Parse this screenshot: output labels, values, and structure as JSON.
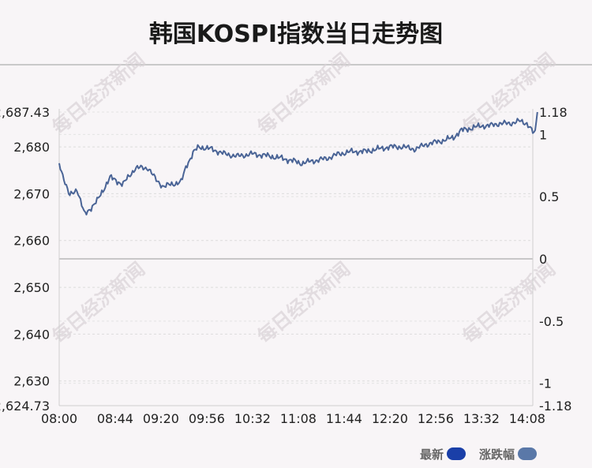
{
  "title": "韩国KOSPI指数当日走势图",
  "watermark": "每日经济新闻",
  "legend": {
    "latest_label": "最新",
    "latest_color": "#1a3fa8",
    "change_label": "涨跌幅",
    "change_color": "#5a78a8"
  },
  "chart_data": {
    "type": "line",
    "title": "韩国KOSPI指数当日走势图",
    "line_color": "#4a6496",
    "grid": true,
    "legend_placement": "bottom-right",
    "x_ticks": [
      "08:00",
      "08:44",
      "09:20",
      "09:56",
      "10:32",
      "11:08",
      "11:44",
      "12:20",
      "12:56",
      "13:32",
      "14:08"
    ],
    "y_left_ticks": [
      "2,687.43",
      "2,680",
      "2,670",
      "2,660",
      "2,650",
      "2,640",
      "2,630",
      "2,624.73"
    ],
    "y_right_ticks": [
      "1.18",
      "1",
      "0.5",
      "0",
      "-0.5",
      "-1",
      "-1.18"
    ],
    "y_left_range": [
      2624.73,
      2687.43
    ],
    "y_right_range": [
      -1.18,
      1.18
    ],
    "baseline": 2656.08,
    "series": [
      {
        "name": "最新",
        "x": [
          "08:00",
          "08:08",
          "08:14",
          "08:20",
          "08:30",
          "08:40",
          "08:50",
          "09:00",
          "09:10",
          "09:16",
          "09:22",
          "09:28",
          "09:36",
          "09:40",
          "09:46",
          "09:50",
          "10:00",
          "10:10",
          "10:20",
          "10:32",
          "10:46",
          "10:56",
          "11:04",
          "11:10",
          "11:20",
          "11:30",
          "11:40",
          "11:50",
          "12:00",
          "12:10",
          "12:20",
          "12:30",
          "12:40",
          "12:48",
          "12:56",
          "13:04",
          "13:10",
          "13:16",
          "13:24",
          "13:32",
          "13:38",
          "13:46",
          "13:54",
          "14:02",
          "14:08",
          "14:14",
          "14:16"
        ],
        "values": [
          2676.5,
          2669.5,
          2671.0,
          2665.5,
          2668.5,
          2673.5,
          2672.0,
          2675.5,
          2675.5,
          2673.0,
          2671.5,
          2672.0,
          2672.5,
          2676.0,
          2679.0,
          2680.0,
          2679.5,
          2678.5,
          2678.0,
          2678.5,
          2678.0,
          2677.5,
          2677.0,
          2676.5,
          2677.0,
          2677.5,
          2678.5,
          2679.0,
          2679.0,
          2679.5,
          2680.0,
          2680.0,
          2679.5,
          2680.5,
          2681.0,
          2681.5,
          2682.0,
          2683.5,
          2684.0,
          2684.5,
          2684.5,
          2685.0,
          2685.0,
          2685.5,
          2685.0,
          2682.5,
          2687.43
        ]
      }
    ]
  }
}
